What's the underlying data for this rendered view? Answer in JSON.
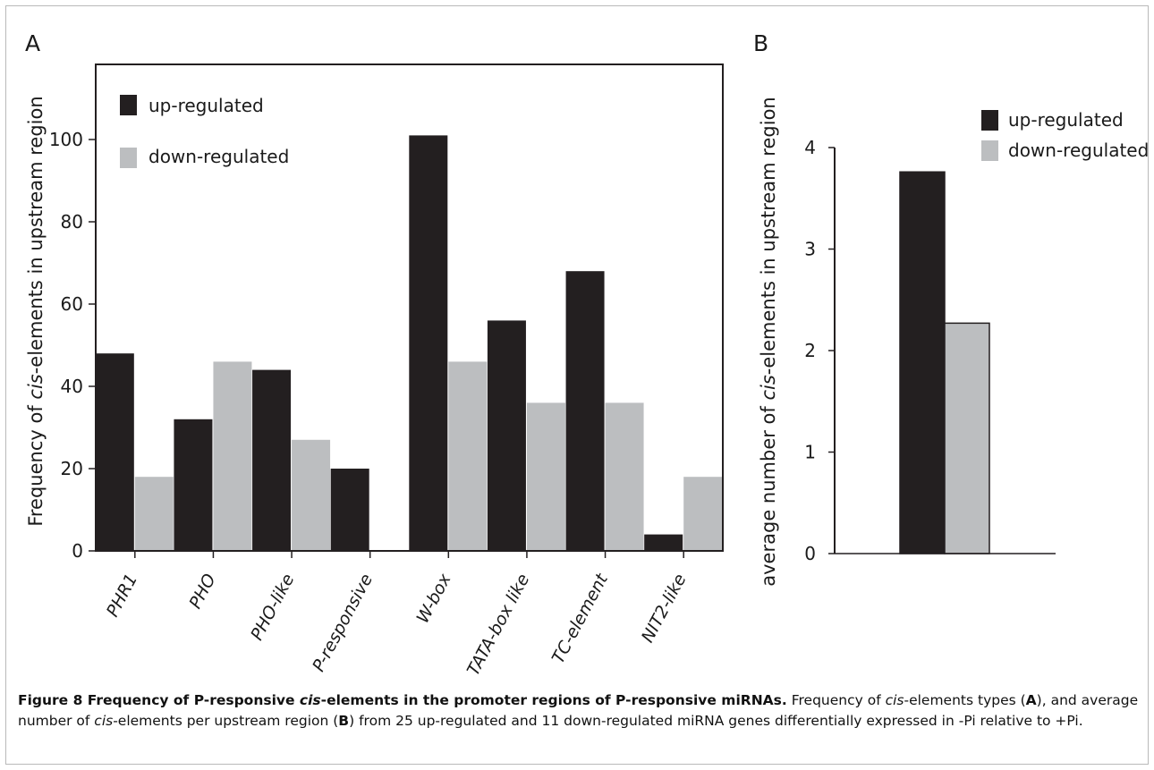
{
  "chart_data": [
    {
      "type": "bar",
      "panel": "A",
      "ylabel_plain": "Frequency of ",
      "ylabel_italic": "cis",
      "ylabel_rest": "-elements in upstream region",
      "xlabel": "",
      "categories": [
        "PHR1",
        "PHO",
        "PHO-like",
        "P-responsive",
        "W-box",
        "TATA-box like",
        "TC-element",
        "NIT2-like"
      ],
      "series": [
        {
          "name": "up-regulated",
          "color": "#231f20",
          "values": [
            48,
            32,
            44,
            20,
            101,
            56,
            68,
            4
          ]
        },
        {
          "name": "down-regulated",
          "color": "#bcbec0",
          "values": [
            18,
            46,
            27,
            0,
            46,
            36,
            36,
            18
          ]
        }
      ],
      "yticks": [
        0,
        20,
        40,
        60,
        80,
        100
      ],
      "ylim": [
        0,
        120
      ],
      "legend": "top-left",
      "grid": false
    },
    {
      "type": "bar",
      "panel": "B",
      "ylabel_plain": "average number of  ",
      "ylabel_italic": "cis",
      "ylabel_rest": "-elements in upstream region",
      "xlabel": "",
      "categories": [
        ""
      ],
      "series": [
        {
          "name": "up-regulated",
          "color": "#231f20",
          "values": [
            3.76
          ]
        },
        {
          "name": "down-regulated",
          "color": "#bcbec0",
          "values": [
            2.27
          ]
        }
      ],
      "yticks": [
        0,
        1,
        2,
        3,
        4
      ],
      "ylim": [
        0,
        4
      ],
      "legend": "top-right",
      "grid": false
    }
  ],
  "caption": {
    "label": "Figure 8",
    "title_before": "Frequency of P-responsive ",
    "title_italic": "cis",
    "title_after": "-elements in the promoter regions of P-responsive miRNAs.",
    "t1": " Frequency of ",
    "t1_italic": "cis",
    "t2": "-elements types (",
    "ref_a": "A",
    "t3": "), and average number of ",
    "t3_italic": "cis",
    "t4": "-elements per upstream region (",
    "ref_b": "B",
    "t5": ") from 25 up-regulated and 11 down-regulated miRNA genes differentially expressed in -Pi relative to +Pi."
  }
}
